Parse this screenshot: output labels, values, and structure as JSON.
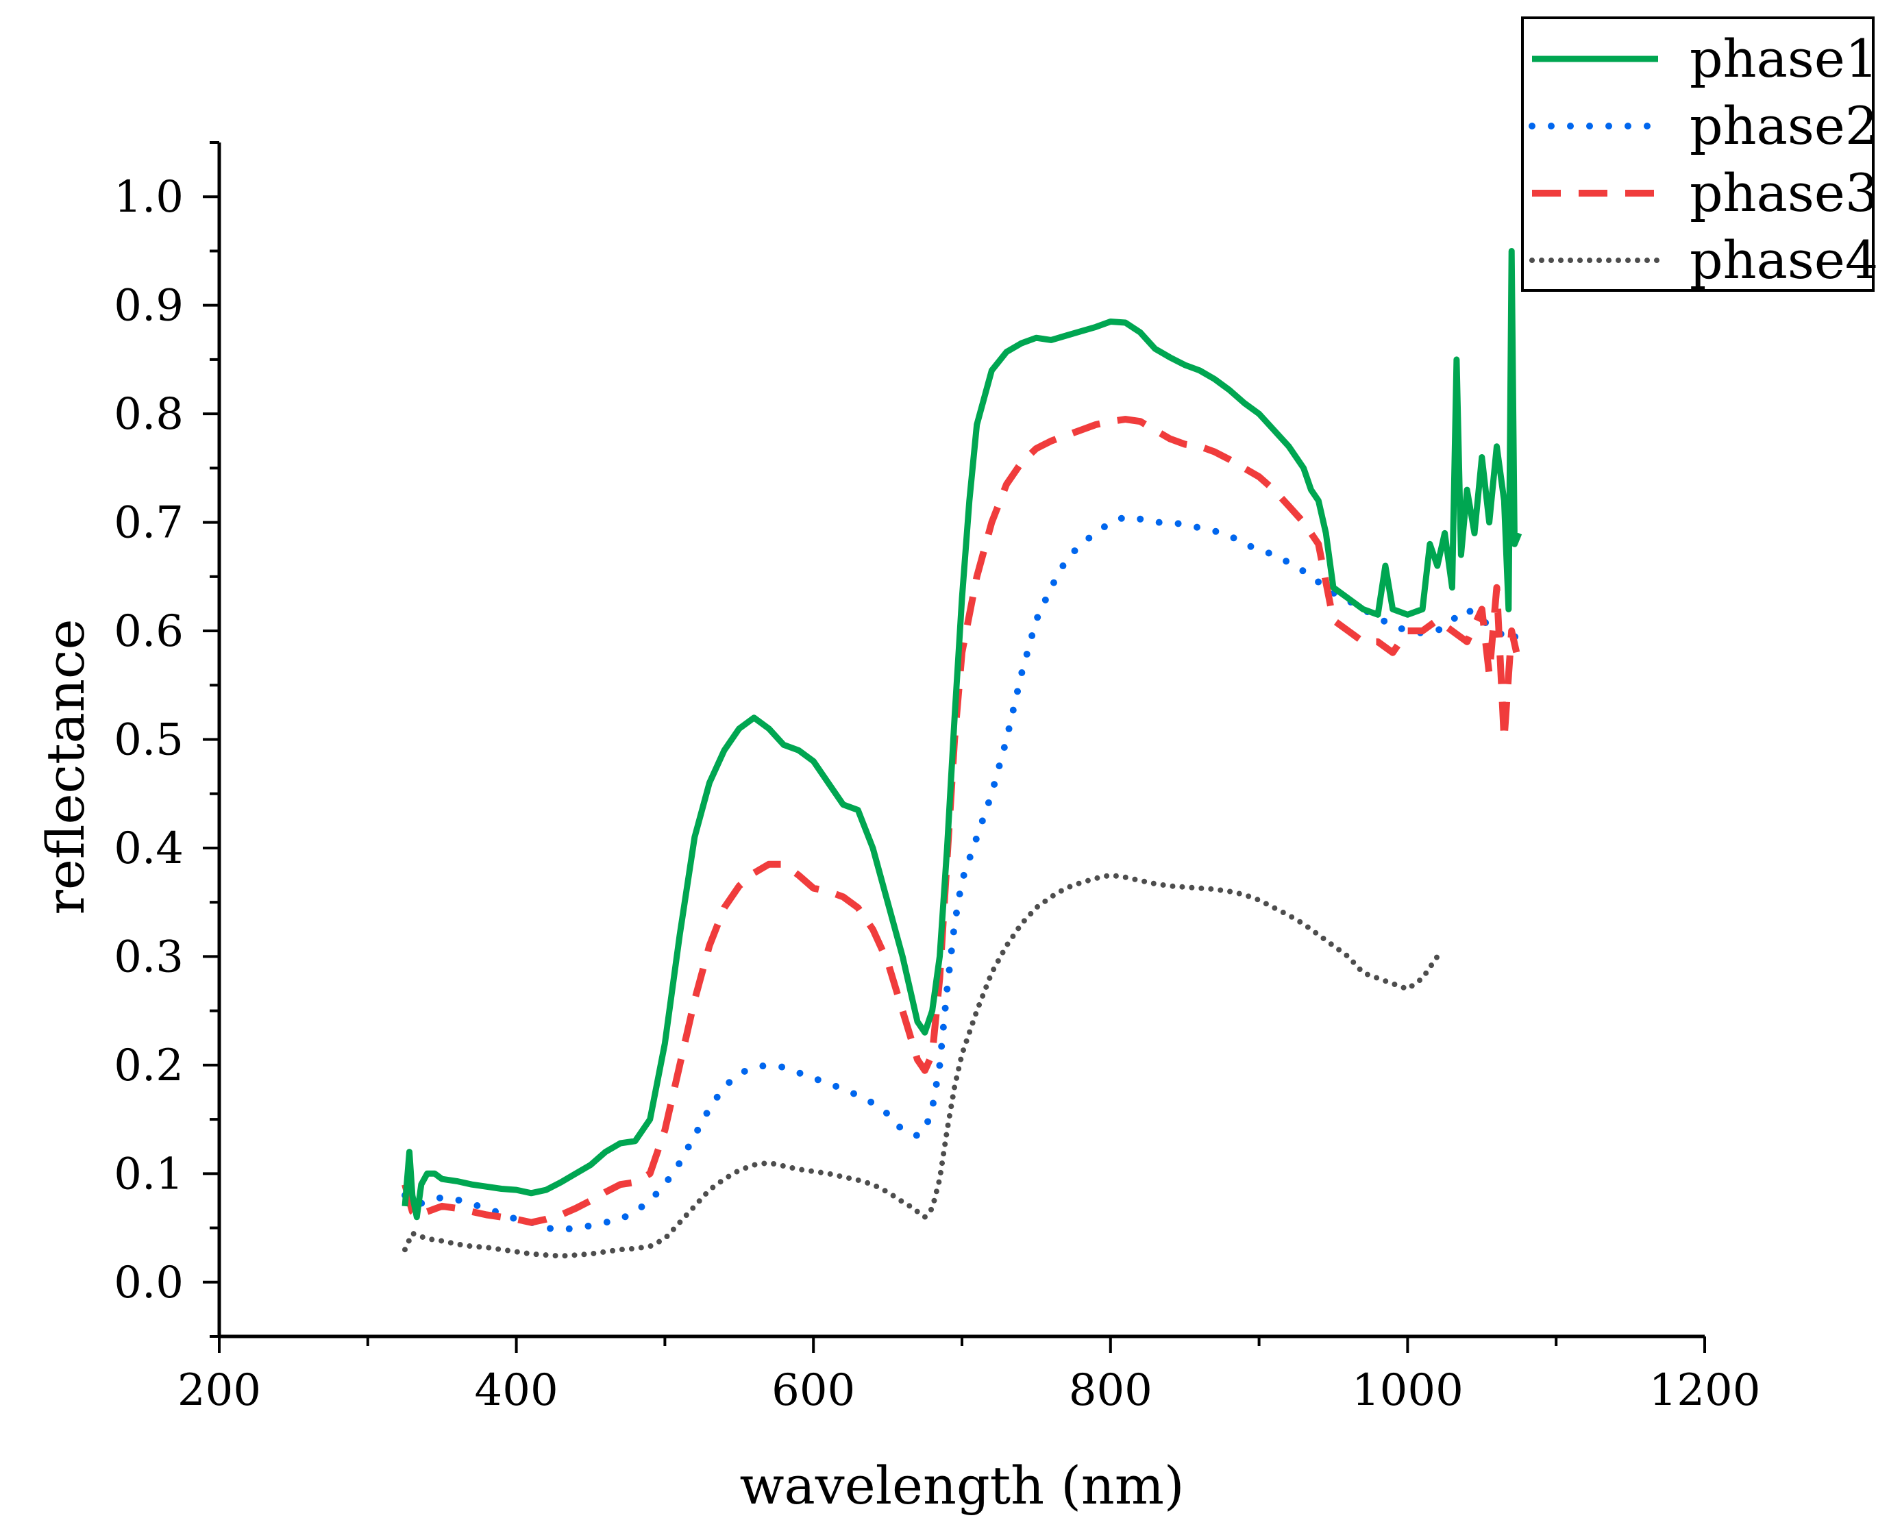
{
  "chart_data": {
    "type": "line",
    "title": "",
    "xlabel": "wavelength (nm)",
    "ylabel": "reflectance",
    "xlim": [
      200,
      1200
    ],
    "ylim": [
      -0.05,
      1.05
    ],
    "xticks": [
      200,
      400,
      600,
      800,
      1000,
      1200
    ],
    "xtick_labels": [
      "200",
      "400",
      "600",
      "800",
      "1000",
      "1200"
    ],
    "yticks": [
      0.0,
      0.1,
      0.2,
      0.3,
      0.4,
      0.5,
      0.6,
      0.7,
      0.8,
      0.9,
      1.0
    ],
    "ytick_labels": [
      "0.0",
      "0.1",
      "0.2",
      "0.3",
      "0.4",
      "0.5",
      "0.6",
      "0.7",
      "0.8",
      "0.9",
      "1.0"
    ],
    "grid": false,
    "legend_position": "top-right",
    "series": [
      {
        "name": "phase1",
        "color": "#00a651",
        "style": "solid",
        "x": [
          325,
          328,
          330,
          333,
          336,
          340,
          345,
          350,
          360,
          370,
          380,
          390,
          400,
          410,
          420,
          430,
          440,
          450,
          460,
          470,
          480,
          490,
          500,
          510,
          520,
          530,
          540,
          550,
          560,
          570,
          580,
          590,
          600,
          610,
          620,
          630,
          640,
          650,
          660,
          670,
          675,
          680,
          685,
          690,
          695,
          700,
          705,
          710,
          720,
          730,
          740,
          750,
          760,
          770,
          780,
          790,
          800,
          810,
          820,
          830,
          840,
          850,
          860,
          870,
          880,
          890,
          900,
          910,
          920,
          930,
          935,
          940,
          945,
          950,
          960,
          970,
          980,
          985,
          990,
          1000,
          1010,
          1015,
          1020,
          1025,
          1030,
          1033,
          1036,
          1040,
          1045,
          1050,
          1055,
          1060,
          1065,
          1068,
          1070,
          1072,
          1075
        ],
        "values": [
          0.07,
          0.12,
          0.08,
          0.06,
          0.09,
          0.1,
          0.1,
          0.095,
          0.093,
          0.09,
          0.088,
          0.086,
          0.085,
          0.082,
          0.085,
          0.092,
          0.1,
          0.108,
          0.12,
          0.128,
          0.13,
          0.15,
          0.22,
          0.32,
          0.41,
          0.46,
          0.49,
          0.51,
          0.52,
          0.51,
          0.495,
          0.49,
          0.48,
          0.46,
          0.44,
          0.435,
          0.4,
          0.35,
          0.3,
          0.24,
          0.23,
          0.25,
          0.3,
          0.4,
          0.52,
          0.63,
          0.72,
          0.79,
          0.84,
          0.857,
          0.865,
          0.87,
          0.868,
          0.872,
          0.876,
          0.88,
          0.885,
          0.884,
          0.875,
          0.86,
          0.852,
          0.845,
          0.84,
          0.832,
          0.822,
          0.81,
          0.8,
          0.785,
          0.77,
          0.75,
          0.73,
          0.72,
          0.69,
          0.64,
          0.63,
          0.62,
          0.615,
          0.66,
          0.62,
          0.615,
          0.62,
          0.68,
          0.66,
          0.69,
          0.64,
          0.85,
          0.67,
          0.73,
          0.69,
          0.76,
          0.7,
          0.77,
          0.72,
          0.62,
          0.95,
          0.68,
          0.69
        ]
      },
      {
        "name": "phase2",
        "color": "#0066ee",
        "style": "dotted",
        "x": [
          325,
          330,
          335,
          340,
          350,
          360,
          370,
          380,
          390,
          400,
          410,
          420,
          430,
          440,
          450,
          460,
          470,
          480,
          490,
          500,
          510,
          520,
          530,
          540,
          550,
          560,
          570,
          580,
          590,
          600,
          610,
          620,
          630,
          640,
          650,
          660,
          670,
          675,
          680,
          685,
          690,
          695,
          700,
          710,
          720,
          730,
          740,
          750,
          760,
          770,
          780,
          790,
          800,
          810,
          820,
          830,
          840,
          850,
          860,
          870,
          880,
          890,
          900,
          910,
          920,
          930,
          940,
          950,
          960,
          970,
          980,
          990,
          1000,
          1010,
          1020,
          1030,
          1040,
          1050,
          1060,
          1070,
          1075
        ],
        "values": [
          0.08,
          0.075,
          0.072,
          0.075,
          0.078,
          0.076,
          0.072,
          0.068,
          0.063,
          0.058,
          0.055,
          0.05,
          0.048,
          0.05,
          0.052,
          0.055,
          0.058,
          0.065,
          0.075,
          0.09,
          0.11,
          0.135,
          0.16,
          0.18,
          0.192,
          0.198,
          0.2,
          0.198,
          0.193,
          0.188,
          0.183,
          0.178,
          0.172,
          0.165,
          0.155,
          0.14,
          0.135,
          0.14,
          0.16,
          0.2,
          0.27,
          0.33,
          0.37,
          0.41,
          0.45,
          0.5,
          0.56,
          0.61,
          0.64,
          0.665,
          0.68,
          0.69,
          0.7,
          0.705,
          0.703,
          0.7,
          0.7,
          0.698,
          0.695,
          0.692,
          0.688,
          0.68,
          0.675,
          0.67,
          0.663,
          0.655,
          0.645,
          0.635,
          0.628,
          0.62,
          0.612,
          0.605,
          0.6,
          0.598,
          0.6,
          0.61,
          0.62,
          0.61,
          0.6,
          0.59,
          0.6
        ]
      },
      {
        "name": "phase3",
        "color": "#f03c3c",
        "style": "dashed",
        "x": [
          325,
          330,
          335,
          340,
          350,
          360,
          370,
          380,
          390,
          400,
          410,
          420,
          430,
          440,
          450,
          460,
          470,
          480,
          490,
          500,
          510,
          520,
          530,
          540,
          550,
          560,
          570,
          580,
          590,
          600,
          610,
          620,
          630,
          640,
          650,
          660,
          670,
          675,
          680,
          685,
          690,
          695,
          700,
          710,
          720,
          730,
          740,
          750,
          760,
          770,
          780,
          790,
          800,
          810,
          820,
          830,
          840,
          850,
          860,
          870,
          880,
          890,
          900,
          910,
          920,
          930,
          940,
          950,
          960,
          970,
          980,
          990,
          1000,
          1010,
          1020,
          1030,
          1040,
          1050,
          1055,
          1060,
          1065,
          1070,
          1075
        ],
        "values": [
          0.09,
          0.065,
          0.06,
          0.065,
          0.07,
          0.068,
          0.065,
          0.062,
          0.06,
          0.058,
          0.055,
          0.058,
          0.062,
          0.068,
          0.075,
          0.083,
          0.09,
          0.092,
          0.1,
          0.14,
          0.2,
          0.26,
          0.31,
          0.345,
          0.365,
          0.377,
          0.385,
          0.385,
          0.375,
          0.363,
          0.36,
          0.355,
          0.345,
          0.325,
          0.295,
          0.25,
          0.205,
          0.195,
          0.21,
          0.28,
          0.39,
          0.5,
          0.58,
          0.65,
          0.7,
          0.735,
          0.755,
          0.768,
          0.775,
          0.78,
          0.785,
          0.79,
          0.793,
          0.795,
          0.793,
          0.785,
          0.777,
          0.772,
          0.77,
          0.765,
          0.758,
          0.75,
          0.742,
          0.73,
          0.715,
          0.7,
          0.68,
          0.61,
          0.6,
          0.59,
          0.59,
          0.58,
          0.6,
          0.6,
          0.61,
          0.6,
          0.59,
          0.62,
          0.56,
          0.64,
          0.5,
          0.6,
          0.57
        ]
      },
      {
        "name": "phase4",
        "color": "#4d4d4d",
        "style": "dotted",
        "x": [
          325,
          330,
          340,
          350,
          360,
          370,
          380,
          390,
          400,
          410,
          420,
          430,
          440,
          450,
          460,
          470,
          480,
          490,
          500,
          510,
          520,
          530,
          540,
          550,
          560,
          570,
          580,
          590,
          600,
          610,
          620,
          630,
          640,
          650,
          660,
          665,
          670,
          675,
          680,
          685,
          690,
          695,
          700,
          710,
          720,
          730,
          740,
          750,
          760,
          770,
          780,
          790,
          800,
          810,
          820,
          830,
          840,
          850,
          860,
          870,
          880,
          890,
          900,
          910,
          920,
          930,
          940,
          950,
          960,
          970,
          980,
          990,
          1000,
          1010,
          1015,
          1020
        ],
        "values": [
          0.03,
          0.045,
          0.04,
          0.038,
          0.035,
          0.033,
          0.032,
          0.03,
          0.028,
          0.026,
          0.025,
          0.024,
          0.025,
          0.026,
          0.028,
          0.03,
          0.031,
          0.033,
          0.04,
          0.055,
          0.07,
          0.085,
          0.095,
          0.103,
          0.108,
          0.11,
          0.107,
          0.104,
          0.102,
          0.1,
          0.097,
          0.094,
          0.09,
          0.083,
          0.074,
          0.07,
          0.065,
          0.06,
          0.068,
          0.095,
          0.14,
          0.18,
          0.21,
          0.25,
          0.285,
          0.31,
          0.33,
          0.345,
          0.355,
          0.363,
          0.368,
          0.372,
          0.375,
          0.373,
          0.37,
          0.367,
          0.365,
          0.364,
          0.363,
          0.362,
          0.36,
          0.357,
          0.352,
          0.345,
          0.338,
          0.33,
          0.32,
          0.31,
          0.3,
          0.285,
          0.28,
          0.275,
          0.27,
          0.28,
          0.29,
          0.3
        ]
      }
    ]
  }
}
